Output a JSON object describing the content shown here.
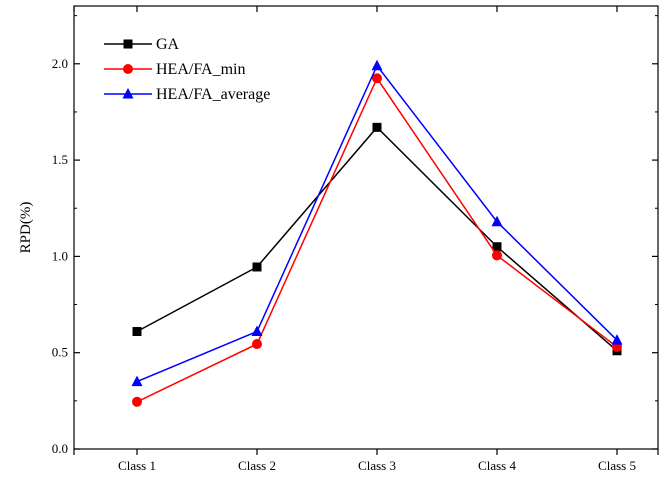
{
  "chart_data": {
    "type": "line",
    "title": "",
    "xlabel": "",
    "ylabel": "RPD(%)",
    "categories": [
      "Class 1",
      "Class 2",
      "Class 3",
      "Class 4",
      "Class 5"
    ],
    "ylim": [
      0,
      2.3
    ],
    "yticks": [
      0.0,
      0.5,
      1.0,
      1.5,
      2.0
    ],
    "ytick_labels": [
      "0.0",
      "0.5",
      "1.0",
      "1.5",
      "2.0"
    ],
    "grid": false,
    "legend_position": "top-left",
    "series": [
      {
        "name": "GA",
        "color": "#000000",
        "marker": "square",
        "values": [
          0.61,
          0.945,
          1.67,
          1.05,
          0.51
        ]
      },
      {
        "name": "HEA/FA_min",
        "color": "#ff0000",
        "marker": "circle",
        "values": [
          0.245,
          0.545,
          1.925,
          1.005,
          0.53
        ]
      },
      {
        "name": "HEA/FA_average",
        "color": "#0000ff",
        "marker": "triangle",
        "values": [
          0.35,
          0.61,
          1.99,
          1.18,
          0.565
        ]
      }
    ]
  }
}
